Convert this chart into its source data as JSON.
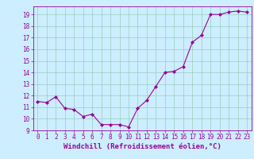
{
  "x_values": [
    0,
    1,
    2,
    3,
    4,
    5,
    6,
    7,
    8,
    9,
    10,
    11,
    12,
    13,
    14,
    15,
    16,
    17,
    18,
    19,
    20,
    21,
    22,
    23
  ],
  "y_values": [
    11.5,
    11.4,
    11.9,
    10.9,
    10.8,
    10.2,
    10.4,
    9.5,
    9.5,
    9.5,
    9.3,
    10.9,
    11.6,
    12.8,
    14.0,
    14.1,
    14.5,
    16.6,
    17.2,
    19.0,
    19.0,
    19.2,
    19.3,
    19.2
  ],
  "line_color": "#990099",
  "marker": "D",
  "marker_size": 2.0,
  "bg_color": "#cceeff",
  "grid_color": "#99ccbb",
  "xlabel": "Windchill (Refroidissement éolien,°C)",
  "xlim": [
    -0.5,
    23.5
  ],
  "ylim": [
    9,
    19.7
  ],
  "yticks": [
    9,
    10,
    11,
    12,
    13,
    14,
    15,
    16,
    17,
    18,
    19
  ],
  "xticks": [
    0,
    1,
    2,
    3,
    4,
    5,
    6,
    7,
    8,
    9,
    10,
    11,
    12,
    13,
    14,
    15,
    16,
    17,
    18,
    19,
    20,
    21,
    22,
    23
  ],
  "tick_fontsize": 5.5,
  "label_fontsize": 6.5
}
